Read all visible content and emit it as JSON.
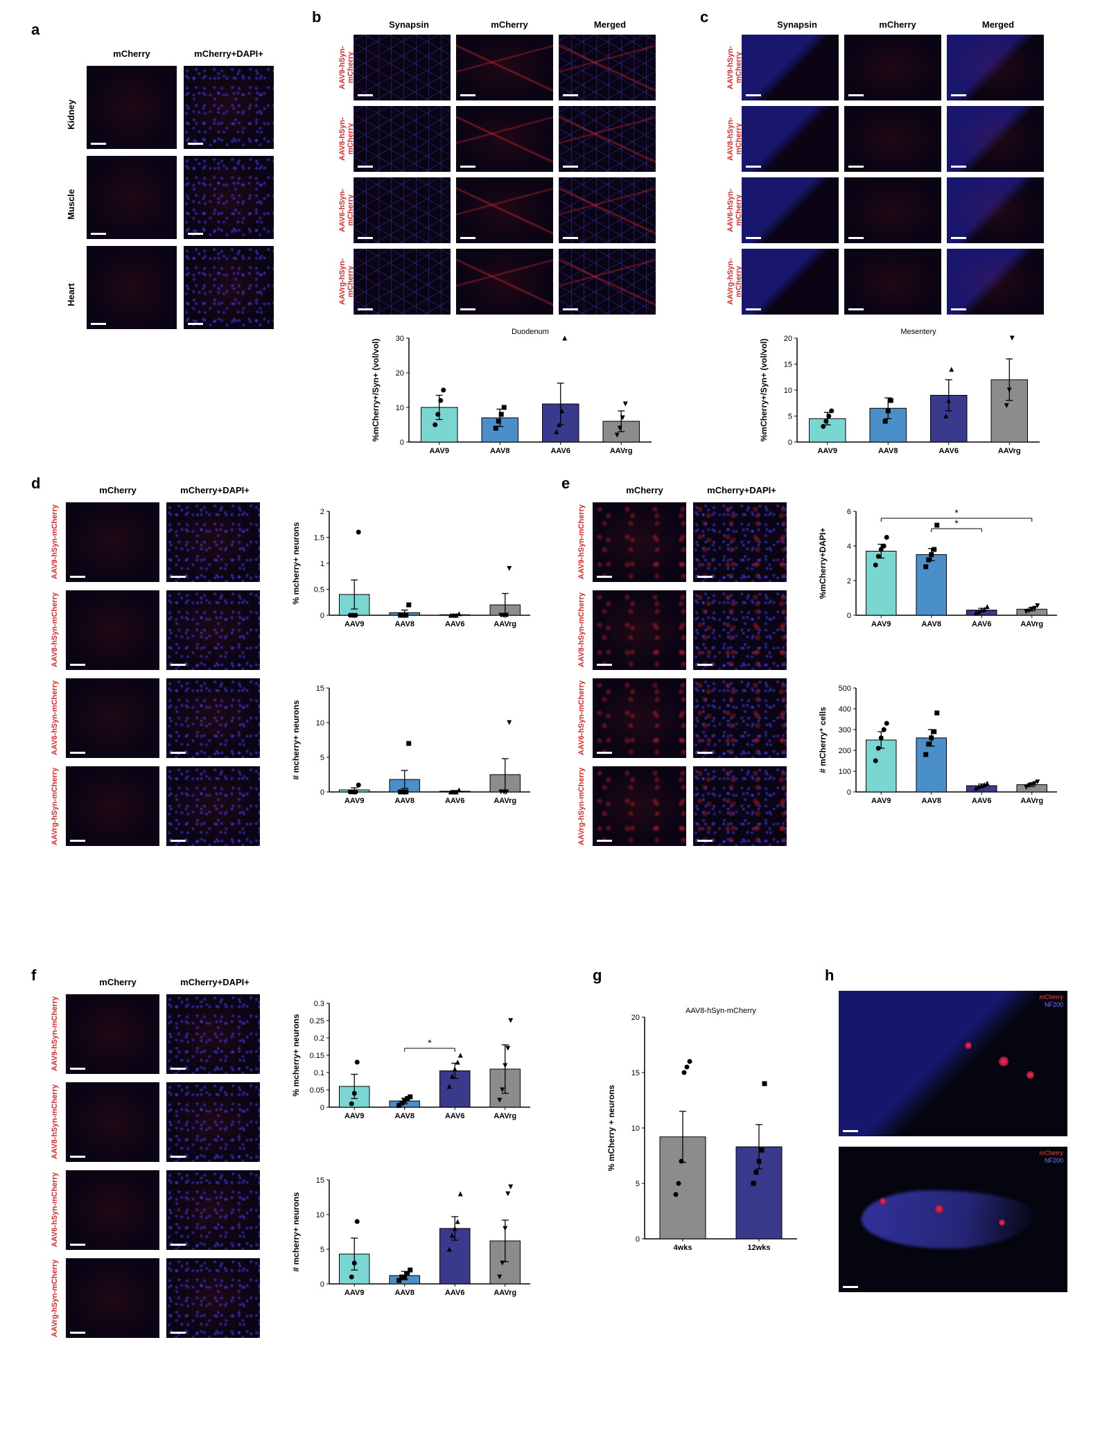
{
  "colors": {
    "aav9": "#7ad6d0",
    "aav8": "#4a8fca",
    "aav6": "#3a3a8c",
    "aavrg": "#8c8c8c",
    "axis": "#000000",
    "bg": "#ffffff",
    "micro_bg": "#0a0414",
    "label_red": "#d92b2b"
  },
  "panel_labels": {
    "a": "a",
    "b": "b",
    "c": "c",
    "d": "d",
    "e": "e",
    "f": "f",
    "g": "g",
    "h": "h"
  },
  "panel_a": {
    "col_headers": [
      "mCherry",
      "mCherry+DAPI+"
    ],
    "row_labels": [
      "Kidney",
      "Muscle",
      "Heart"
    ]
  },
  "panel_b": {
    "col_headers": [
      "Synapsin",
      "mCherry",
      "Merged"
    ],
    "row_labels": [
      "AAV9-hSyn-mCherry",
      "AAV8-hSyn-mCherry",
      "AAV6-hSyn-mCherry",
      "AAVrg-hSyn-mCherry"
    ],
    "chart": {
      "type": "bar-scatter",
      "title": "Duodenum",
      "ylabel": "%mCherry+/Syn+ (vol/vol)",
      "ylim": [
        0,
        30
      ],
      "yticks": [
        0,
        10,
        20,
        30
      ],
      "categories": [
        "AAV9",
        "AAV8",
        "AAV6",
        "AAVrg"
      ],
      "bar_means": [
        10,
        7,
        11,
        6
      ],
      "bar_err": [
        3.5,
        2.5,
        6,
        3
      ],
      "bar_colors": [
        "#7ad6d0",
        "#4a8fca",
        "#3a3a8c",
        "#8c8c8c"
      ],
      "points": {
        "AAV9": {
          "vals": [
            5,
            8,
            12,
            15
          ],
          "marker": "circle"
        },
        "AAV8": {
          "vals": [
            4,
            6,
            8,
            10
          ],
          "marker": "square"
        },
        "AAV6": {
          "vals": [
            3,
            5,
            9,
            30
          ],
          "marker": "triangle"
        },
        "AAVrg": {
          "vals": [
            2,
            4,
            7,
            11
          ],
          "marker": "tri-down"
        }
      }
    }
  },
  "panel_c": {
    "col_headers": [
      "Synapsin",
      "mCherry",
      "Merged"
    ],
    "row_labels": [
      "AAV9-hSyn-mCherry",
      "AAV8-hSyn-mCherry",
      "AAV6-hSyn-mCherry",
      "AAVrg-hSyn-mCherry"
    ],
    "chart": {
      "type": "bar-scatter",
      "title": "Mesentery",
      "ylabel": "%mCherry+/Syn+ (vol/vol)",
      "ylim": [
        0,
        20
      ],
      "yticks": [
        0,
        5,
        10,
        15,
        20
      ],
      "categories": [
        "AAV9",
        "AAV8",
        "AAV6",
        "AAVrg"
      ],
      "bar_means": [
        4.5,
        6.5,
        9,
        12
      ],
      "bar_err": [
        1.2,
        2,
        3,
        4
      ],
      "bar_colors": [
        "#7ad6d0",
        "#4a8fca",
        "#3a3a8c",
        "#8c8c8c"
      ],
      "points": {
        "AAV9": {
          "vals": [
            3,
            4,
            5,
            6
          ],
          "marker": "circle"
        },
        "AAV8": {
          "vals": [
            4,
            6,
            8
          ],
          "marker": "square"
        },
        "AAV6": {
          "vals": [
            5,
            8,
            14
          ],
          "marker": "triangle"
        },
        "AAVrg": {
          "vals": [
            7,
            10,
            20
          ],
          "marker": "tri-down"
        }
      }
    }
  },
  "panel_d": {
    "col_headers": [
      "mCherry",
      "mCherry+DAPI+"
    ],
    "row_labels": [
      "AAV9-hSyn-mCherry",
      "AAV8-hSyn-mCherry",
      "AAV6-hSyn-mCherry",
      "AAVrg-hSyn-mCherry"
    ],
    "chart_top": {
      "ylabel": "% mcherry+ neurons",
      "ylim": [
        0,
        2.0
      ],
      "yticks": [
        0.0,
        0.5,
        1.0,
        1.5,
        2.0
      ],
      "categories": [
        "AAV9",
        "AAV8",
        "AAV6",
        "AAVrg"
      ],
      "bar_means": [
        0.4,
        0.05,
        0.01,
        0.2
      ],
      "bar_err": [
        0.28,
        0.05,
        0.01,
        0.22
      ],
      "bar_colors": [
        "#7ad6d0",
        "#4a8fca",
        "#3a3a8c",
        "#8c8c8c"
      ],
      "points": {
        "AAV9": {
          "vals": [
            0,
            0,
            0,
            1.6
          ],
          "marker": "circle"
        },
        "AAV8": {
          "vals": [
            0,
            0,
            0,
            0.2
          ],
          "marker": "square"
        },
        "AAV6": {
          "vals": [
            0,
            0,
            0,
            0.03
          ],
          "marker": "triangle"
        },
        "AAVrg": {
          "vals": [
            0,
            0,
            0,
            0.9
          ],
          "marker": "tri-down"
        }
      }
    },
    "chart_bottom": {
      "ylabel": "# mcherry+ neurons",
      "ylim": [
        0,
        15
      ],
      "yticks": [
        0,
        5,
        10,
        15
      ],
      "categories": [
        "AAV9",
        "AAV8",
        "AAV6",
        "AAVrg"
      ],
      "bar_means": [
        0.3,
        1.8,
        0.1,
        2.5
      ],
      "bar_err": [
        0.3,
        1.3,
        0.1,
        2.3
      ],
      "bar_colors": [
        "#7ad6d0",
        "#4a8fca",
        "#3a3a8c",
        "#8c8c8c"
      ],
      "points": {
        "AAV9": {
          "vals": [
            0,
            0,
            0,
            1
          ],
          "marker": "circle"
        },
        "AAV8": {
          "vals": [
            0,
            0,
            0,
            7
          ],
          "marker": "square"
        },
        "AAV6": {
          "vals": [
            0,
            0,
            0,
            0.3
          ],
          "marker": "triangle"
        },
        "AAVrg": {
          "vals": [
            0,
            0,
            0,
            10
          ],
          "marker": "tri-down"
        }
      }
    }
  },
  "panel_e": {
    "col_headers": [
      "mCherry",
      "mCherry+DAPI+"
    ],
    "row_labels": [
      "AAV9-hSyn-mCherry",
      "AAV8-hSyn-mCherry",
      "AAV6-hSyn-mCherry",
      "AAVrg-hSyn-mCherry"
    ],
    "chart_top": {
      "ylabel": "%mCherry+DAPI+",
      "ylim": [
        0,
        6
      ],
      "yticks": [
        0,
        2,
        4,
        6
      ],
      "categories": [
        "AAV9",
        "AAV8",
        "AAV6",
        "AAVrg"
      ],
      "bar_means": [
        3.7,
        3.5,
        0.3,
        0.35
      ],
      "bar_err": [
        0.4,
        0.35,
        0.1,
        0.1
      ],
      "bar_colors": [
        "#7ad6d0",
        "#4a8fca",
        "#3a3a8c",
        "#8c8c8c"
      ],
      "points": {
        "AAV9": {
          "vals": [
            2.9,
            3.4,
            3.8,
            4.0,
            4.5
          ],
          "marker": "circle"
        },
        "AAV8": {
          "vals": [
            2.8,
            3.2,
            3.5,
            3.8,
            5.2
          ],
          "marker": "square"
        },
        "AAV6": {
          "vals": [
            0.15,
            0.2,
            0.3,
            0.35,
            0.5
          ],
          "marker": "triangle"
        },
        "AAVrg": {
          "vals": [
            0.2,
            0.25,
            0.35,
            0.4,
            0.55
          ],
          "marker": "tri-down"
        }
      },
      "sig": [
        {
          "from": "AAV9",
          "to": "AAVrg",
          "label": "*",
          "y": 5.6
        },
        {
          "from": "AAV8",
          "to": "AAV6",
          "label": "*",
          "y": 5.0
        }
      ]
    },
    "chart_bottom": {
      "ylabel": "# mCherry⁺ cells",
      "ylim": [
        0,
        500
      ],
      "yticks": [
        0,
        100,
        200,
        300,
        400,
        500
      ],
      "categories": [
        "AAV9",
        "AAV8",
        "AAV6",
        "AAVrg"
      ],
      "bar_means": [
        250,
        260,
        30,
        35
      ],
      "bar_err": [
        40,
        40,
        8,
        8
      ],
      "bar_colors": [
        "#7ad6d0",
        "#4a8fca",
        "#3a3a8c",
        "#8c8c8c"
      ],
      "points": {
        "AAV9": {
          "vals": [
            150,
            210,
            260,
            300,
            330
          ],
          "marker": "circle"
        },
        "AAV8": {
          "vals": [
            180,
            230,
            260,
            290,
            380
          ],
          "marker": "square"
        },
        "AAV6": {
          "vals": [
            18,
            25,
            30,
            35,
            42
          ],
          "marker": "triangle"
        },
        "AAVrg": {
          "vals": [
            22,
            30,
            35,
            40,
            48
          ],
          "marker": "tri-down"
        }
      }
    }
  },
  "panel_f": {
    "col_headers": [
      "mCherry",
      "mCherry+DAPI+"
    ],
    "row_labels": [
      "AAV9-hSyn-mCherry",
      "AAV8-hSyn-mCherry",
      "AAV6-hSyn-mCherry",
      "AAVrg-hSyn-mCherry"
    ],
    "chart_top": {
      "ylabel": "% mcherry+ neurons",
      "ylim": [
        0,
        0.3
      ],
      "yticks": [
        0.0,
        0.05,
        0.1,
        0.15,
        0.2,
        0.25,
        0.3
      ],
      "categories": [
        "AAV9",
        "AAV8",
        "AAV6",
        "AAVrg"
      ],
      "bar_means": [
        0.06,
        0.018,
        0.105,
        0.11
      ],
      "bar_err": [
        0.035,
        0.008,
        0.022,
        0.07
      ],
      "bar_colors": [
        "#7ad6d0",
        "#4a8fca",
        "#3a3a8c",
        "#8c8c8c"
      ],
      "points": {
        "AAV9": {
          "vals": [
            0.01,
            0.04,
            0.13
          ],
          "marker": "circle"
        },
        "AAV8": {
          "vals": [
            0.005,
            0.012,
            0.02,
            0.025,
            0.03
          ],
          "marker": "square"
        },
        "AAV6": {
          "vals": [
            0.06,
            0.09,
            0.11,
            0.13,
            0.15
          ],
          "marker": "triangle"
        },
        "AAVrg": {
          "vals": [
            0.02,
            0.05,
            0.12,
            0.17,
            0.25
          ],
          "marker": "tri-down"
        }
      },
      "sig": [
        {
          "from": "AAV8",
          "to": "AAV6",
          "label": "*",
          "y": 0.17
        }
      ]
    },
    "chart_bottom": {
      "ylabel": "# mcherry+ neurons",
      "ylim": [
        0,
        15
      ],
      "yticks": [
        0,
        5,
        10,
        15
      ],
      "categories": [
        "AAV9",
        "AAV8",
        "AAV6",
        "AAVrg"
      ],
      "bar_means": [
        4.3,
        1.2,
        8,
        6.2
      ],
      "bar_err": [
        2.3,
        0.6,
        1.7,
        3
      ],
      "bar_colors": [
        "#7ad6d0",
        "#4a8fca",
        "#3a3a8c",
        "#8c8c8c"
      ],
      "points": {
        "AAV9": {
          "vals": [
            1,
            3,
            9
          ],
          "marker": "circle"
        },
        "AAV8": {
          "vals": [
            0.5,
            1,
            1,
            1.5,
            2
          ],
          "marker": "square"
        },
        "AAV6": {
          "vals": [
            5,
            7,
            8,
            9,
            13
          ],
          "marker": "triangle"
        },
        "AAVrg": {
          "vals": [
            1,
            3,
            8,
            13,
            14
          ],
          "marker": "tri-down"
        }
      }
    }
  },
  "panel_g": {
    "title": "AAV8-hSyn-mCherry",
    "ylabel": "% mCherry + neurons",
    "ylim": [
      0,
      20
    ],
    "yticks": [
      0,
      5,
      10,
      15,
      20
    ],
    "categories": [
      "4wks",
      "12wks"
    ],
    "bar_means": [
      9.2,
      8.3
    ],
    "bar_err": [
      2.3,
      2.0
    ],
    "bar_colors": [
      "#8c8c8c",
      "#3a3a8c"
    ],
    "points": {
      "4wks": {
        "vals": [
          4,
          5,
          7,
          15,
          15.5,
          16
        ],
        "marker": "circle"
      },
      "12wks": {
        "vals": [
          5,
          6,
          7,
          8,
          14
        ],
        "marker": "square"
      }
    }
  },
  "panel_h": {
    "legend": [
      "mCherry",
      "NF200"
    ]
  }
}
